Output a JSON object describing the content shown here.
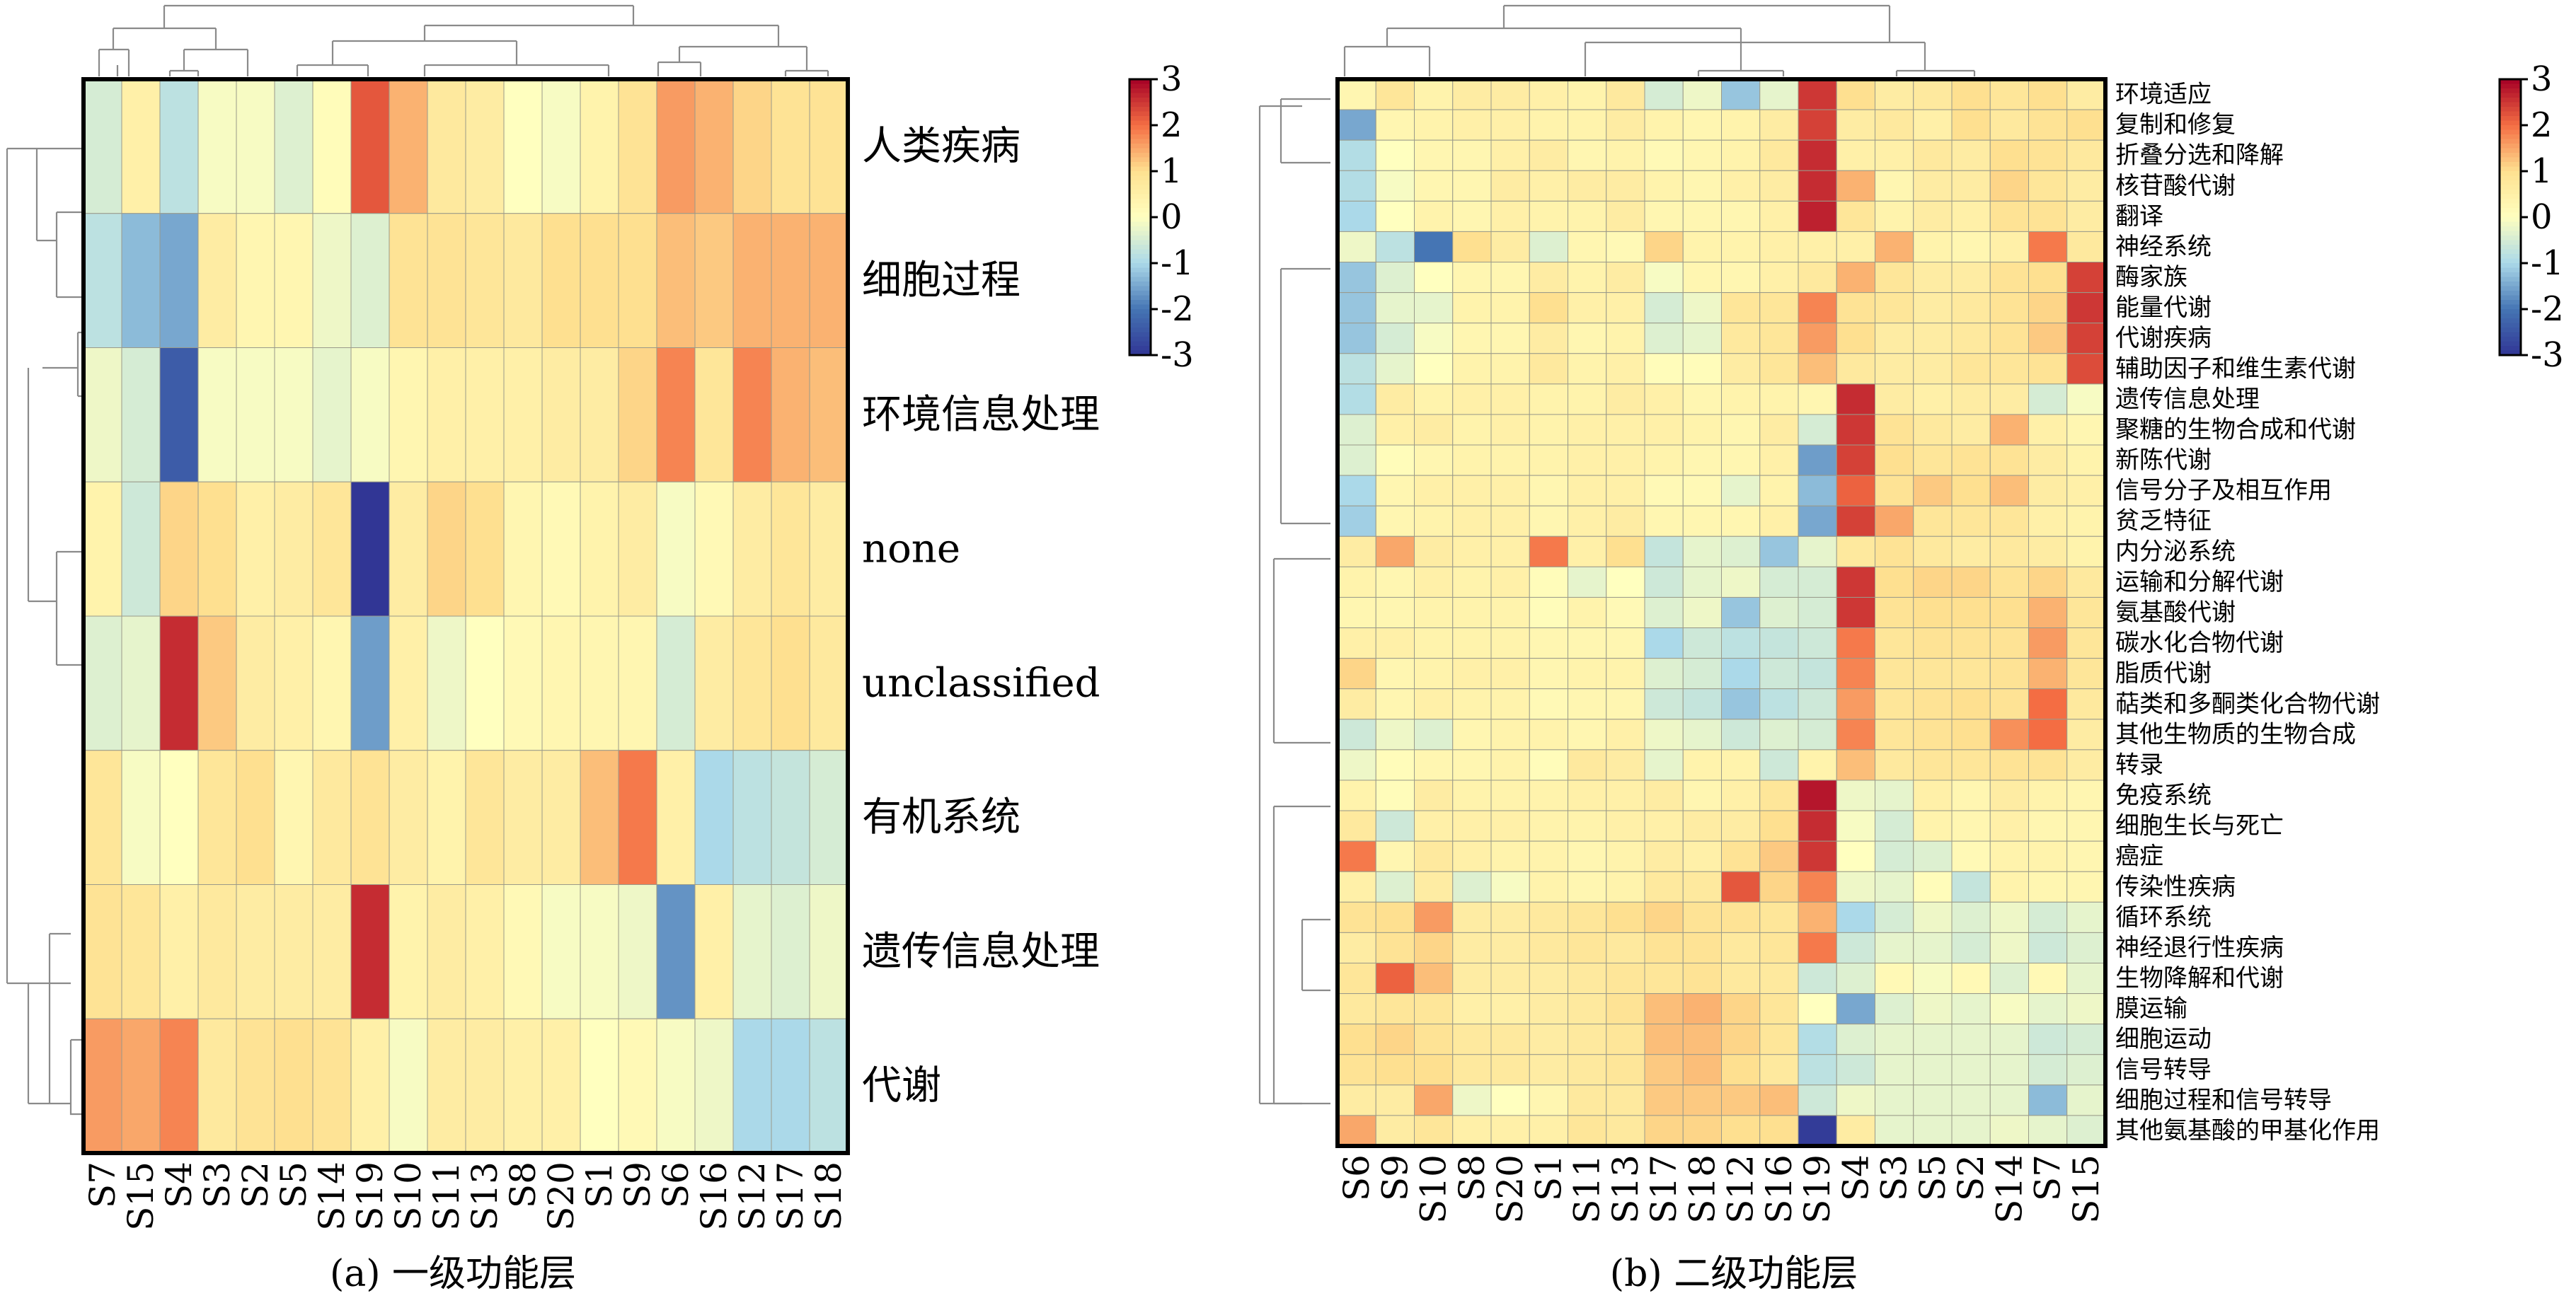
{
  "chart_data": [
    {
      "type": "heatmap",
      "caption": "(a) 一级功能层",
      "rows": [
        "人类疾病",
        "细胞过程",
        "环境信息处理",
        "none",
        "unclassified",
        "有机系统",
        "遗传信息处理",
        "代谢"
      ],
      "columns": [
        "S7",
        "S15",
        "S4",
        "S3",
        "S2",
        "S5",
        "S14",
        "S19",
        "S10",
        "S11",
        "S13",
        "S8",
        "S20",
        "S1",
        "S9",
        "S6",
        "S16",
        "S12",
        "S17",
        "S18"
      ],
      "values": [
        [
          -0.5,
          0.5,
          -0.8,
          -0.1,
          -0.1,
          -0.4,
          0.1,
          2.2,
          1.4,
          0.7,
          0.6,
          0.0,
          -0.1,
          0.4,
          0.9,
          1.6,
          1.4,
          1.1,
          0.9,
          0.9
        ],
        [
          -0.8,
          -1.3,
          -1.5,
          0.6,
          0.3,
          0.3,
          -0.2,
          -0.4,
          0.9,
          0.9,
          0.8,
          0.7,
          1.0,
          1.0,
          1.0,
          1.3,
          1.2,
          1.4,
          1.4,
          1.4
        ],
        [
          -0.2,
          -0.5,
          -2.4,
          -0.1,
          -0.1,
          -0.1,
          -0.3,
          -0.1,
          0.3,
          0.5,
          0.5,
          0.5,
          0.6,
          0.6,
          1.1,
          1.8,
          0.8,
          1.8,
          1.4,
          1.3
        ],
        [
          0.4,
          -0.6,
          1.1,
          1.0,
          0.5,
          0.6,
          0.8,
          -3.0,
          0.6,
          1.1,
          1.0,
          0.3,
          0.2,
          0.4,
          0.6,
          -0.1,
          0.2,
          0.6,
          0.8,
          0.6
        ],
        [
          -0.4,
          -0.3,
          2.6,
          1.2,
          0.6,
          0.5,
          0.3,
          -1.6,
          0.5,
          -0.2,
          0.0,
          0.2,
          0.3,
          0.3,
          0.3,
          -0.5,
          0.6,
          0.8,
          1.0,
          0.7
        ],
        [
          0.8,
          -0.1,
          0.0,
          0.8,
          1.0,
          0.3,
          0.7,
          0.9,
          0.6,
          0.4,
          0.8,
          0.6,
          0.6,
          1.3,
          1.9,
          0.5,
          -1.0,
          -0.8,
          -0.7,
          -0.5
        ],
        [
          0.9,
          0.8,
          0.5,
          0.7,
          0.6,
          0.6,
          0.6,
          2.6,
          0.4,
          0.6,
          0.5,
          0.2,
          -0.1,
          -0.1,
          -0.2,
          -1.7,
          0.5,
          -0.3,
          -0.4,
          -0.2
        ],
        [
          1.6,
          1.5,
          1.8,
          0.7,
          0.9,
          1.0,
          0.9,
          0.5,
          -0.1,
          0.6,
          0.6,
          0.5,
          0.5,
          0.0,
          0.2,
          -0.1,
          -0.2,
          -1.0,
          -1.0,
          -0.8
        ]
      ],
      "colorbar": {
        "ticks": [
          "3",
          "2",
          "1",
          "0",
          "-1",
          "-2",
          "-3"
        ],
        "range": [
          -3,
          3
        ]
      }
    },
    {
      "type": "heatmap",
      "caption": "(b) 二级功能层",
      "rows": [
        "环境适应",
        "复制和修复",
        "折叠分选和降解",
        "核苷酸代谢",
        "翻译",
        "神经系统",
        "酶家族",
        "能量代谢",
        "代谢疾病",
        "辅助因子和维生素代谢",
        "遗传信息处理",
        "聚糖的生物合成和代谢",
        "新陈代谢",
        "信号分子及相互作用",
        "贫乏特征",
        "内分泌系统",
        "运输和分解代谢",
        "氨基酸代谢",
        "碳水化合物代谢",
        "脂质代谢",
        "萜类和多酮类化合物代谢",
        "其他生物质的生物合成",
        "转录",
        "免疫系统",
        "细胞生长与死亡",
        "癌症",
        "传染性疾病",
        "循环系统",
        "神经退行性疾病",
        "生物降解和代谢",
        "膜运输",
        "细胞运动",
        "信号转导",
        "细胞过程和信号转导",
        "其他氨基酸的甲基化作用"
      ],
      "columns": [
        "S6",
        "S9",
        "S10",
        "S8",
        "S20",
        "S1",
        "S11",
        "S13",
        "S17",
        "S18",
        "S12",
        "S16",
        "S19",
        "S4",
        "S3",
        "S5",
        "S2",
        "S14",
        "S7",
        "S15"
      ],
      "values": [
        [
          0.3,
          0.8,
          0.4,
          0.6,
          0.6,
          0.5,
          0.4,
          0.7,
          -0.5,
          -0.2,
          -1.2,
          -0.3,
          2.5,
          1.0,
          0.6,
          0.7,
          1.0,
          0.8,
          1.0,
          0.6
        ],
        [
          -1.5,
          0.3,
          0.4,
          0.5,
          0.5,
          0.4,
          0.4,
          0.6,
          0.4,
          0.3,
          0.4,
          0.6,
          2.4,
          0.6,
          0.7,
          0.5,
          1.0,
          0.7,
          0.9,
          1.0
        ],
        [
          -0.9,
          0.0,
          0.3,
          0.3,
          0.5,
          0.6,
          0.3,
          0.4,
          0.2,
          0.3,
          0.4,
          0.7,
          2.6,
          0.5,
          0.5,
          0.7,
          0.6,
          1.0,
          0.9,
          0.7
        ],
        [
          -0.9,
          -0.1,
          0.3,
          0.3,
          0.6,
          0.5,
          0.6,
          0.6,
          0.4,
          0.3,
          0.5,
          0.6,
          2.6,
          1.4,
          0.3,
          0.6,
          0.6,
          1.1,
          0.8,
          0.6
        ],
        [
          -1.0,
          0.0,
          0.4,
          0.3,
          0.5,
          0.4,
          0.4,
          0.6,
          0.3,
          0.3,
          0.3,
          0.5,
          2.7,
          0.8,
          0.4,
          0.6,
          0.5,
          0.9,
          0.9,
          0.6
        ],
        [
          -0.2,
          -0.8,
          -2.0,
          1.0,
          0.6,
          -0.4,
          0.3,
          0.2,
          1.1,
          0.4,
          0.4,
          0.5,
          0.5,
          0.5,
          1.4,
          0.4,
          0.3,
          0.5,
          1.9,
          0.7
        ],
        [
          -1.2,
          -0.4,
          0.0,
          0.3,
          0.3,
          0.6,
          0.4,
          0.6,
          -0.1,
          0.3,
          0.3,
          0.5,
          0.7,
          1.4,
          0.8,
          0.6,
          0.6,
          0.9,
          1.0,
          2.4
        ],
        [
          -1.2,
          -0.3,
          -0.3,
          0.4,
          0.4,
          1.0,
          0.5,
          0.5,
          -0.5,
          -0.2,
          0.8,
          0.8,
          1.8,
          0.9,
          0.8,
          0.6,
          0.7,
          0.9,
          1.1,
          2.5
        ],
        [
          -1.2,
          -0.5,
          -0.1,
          0.3,
          0.3,
          0.6,
          0.3,
          0.4,
          -0.4,
          -0.3,
          0.7,
          0.8,
          1.6,
          1.0,
          0.6,
          0.6,
          0.7,
          0.9,
          1.2,
          2.4
        ],
        [
          -0.8,
          -0.3,
          0.0,
          0.4,
          0.4,
          0.7,
          0.4,
          0.5,
          0.1,
          0.1,
          0.6,
          0.8,
          1.3,
          0.7,
          0.6,
          0.6,
          0.8,
          0.8,
          0.9,
          2.3
        ],
        [
          -0.9,
          0.6,
          0.4,
          0.5,
          0.5,
          0.4,
          0.4,
          0.6,
          0.5,
          0.3,
          0.4,
          0.4,
          0.3,
          2.6,
          0.6,
          0.5,
          0.6,
          0.6,
          -0.5,
          -0.1
        ],
        [
          -0.4,
          0.5,
          0.6,
          0.4,
          0.5,
          0.4,
          0.5,
          0.5,
          0.5,
          0.4,
          0.3,
          0.6,
          -0.5,
          2.5,
          0.9,
          0.7,
          0.6,
          1.4,
          0.5,
          0.3
        ],
        [
          -0.4,
          0.1,
          0.3,
          0.4,
          0.4,
          0.4,
          0.5,
          0.5,
          0.4,
          0.3,
          0.3,
          0.5,
          -1.6,
          2.4,
          1.0,
          0.8,
          0.9,
          0.9,
          0.6,
          0.4
        ],
        [
          -1.0,
          0.3,
          0.5,
          0.5,
          0.5,
          0.3,
          0.5,
          0.5,
          0.2,
          0.2,
          -0.3,
          0.4,
          -1.3,
          2.1,
          0.9,
          1.2,
          1.0,
          1.3,
          0.6,
          0.5
        ],
        [
          -1.1,
          0.3,
          0.4,
          0.5,
          0.5,
          0.3,
          0.5,
          0.6,
          0.3,
          0.3,
          0.3,
          0.5,
          -1.5,
          2.4,
          1.5,
          0.8,
          0.8,
          0.8,
          0.5,
          0.4
        ],
        [
          0.6,
          1.5,
          0.6,
          0.5,
          0.5,
          1.9,
          0.5,
          1.0,
          -0.7,
          -0.3,
          -0.4,
          -1.2,
          -0.3,
          0.7,
          0.9,
          0.7,
          0.6,
          0.7,
          0.6,
          0.4
        ],
        [
          0.4,
          0.3,
          0.5,
          0.4,
          0.5,
          0.1,
          -0.3,
          0.0,
          -0.6,
          -0.3,
          -0.2,
          -0.5,
          -0.5,
          2.5,
          1.0,
          1.1,
          1.1,
          0.9,
          1.1,
          0.7
        ],
        [
          0.3,
          0.3,
          0.4,
          0.4,
          0.4,
          0.1,
          0.4,
          0.2,
          -0.4,
          -0.2,
          -1.2,
          -0.4,
          -0.5,
          2.5,
          0.9,
          1.0,
          1.0,
          1.0,
          1.4,
          0.8
        ],
        [
          0.5,
          0.5,
          0.4,
          0.4,
          0.4,
          0.3,
          0.3,
          0.3,
          -1.0,
          -0.6,
          -0.8,
          -0.7,
          -0.6,
          1.9,
          0.8,
          0.9,
          0.9,
          0.9,
          1.6,
          0.8
        ],
        [
          1.1,
          0.3,
          0.4,
          0.5,
          0.5,
          0.3,
          0.4,
          0.4,
          -0.4,
          -0.5,
          -1.0,
          -0.6,
          -0.7,
          1.8,
          0.8,
          0.8,
          0.8,
          0.9,
          1.4,
          0.8
        ],
        [
          0.6,
          0.3,
          0.5,
          0.4,
          0.4,
          0.2,
          0.3,
          0.3,
          -0.6,
          -0.7,
          -1.2,
          -0.8,
          -0.6,
          1.6,
          0.8,
          0.9,
          1.0,
          0.9,
          2.0,
          0.7
        ],
        [
          -0.6,
          -0.2,
          -0.4,
          0.3,
          0.4,
          0.4,
          0.3,
          0.5,
          -0.2,
          -0.3,
          -0.6,
          -0.4,
          -0.5,
          1.8,
          0.8,
          0.9,
          1.0,
          1.7,
          2.0,
          0.6
        ],
        [
          -0.2,
          0.1,
          0.3,
          0.3,
          0.4,
          0.1,
          0.7,
          0.6,
          -0.3,
          0.4,
          0.4,
          -0.6,
          0.4,
          1.3,
          0.7,
          0.8,
          0.8,
          0.9,
          0.9,
          0.6
        ],
        [
          0.4,
          0.1,
          0.6,
          0.4,
          0.4,
          0.4,
          0.5,
          0.5,
          0.6,
          0.3,
          0.5,
          0.8,
          2.8,
          -0.2,
          -0.3,
          0.5,
          0.3,
          0.6,
          0.4,
          0.3
        ],
        [
          0.7,
          -0.6,
          0.5,
          0.5,
          0.5,
          0.4,
          0.4,
          0.5,
          0.5,
          0.6,
          0.6,
          1.0,
          2.6,
          -0.1,
          -0.5,
          0.4,
          0.3,
          0.5,
          0.3,
          0.3
        ],
        [
          1.9,
          0.3,
          0.7,
          0.5,
          0.4,
          0.4,
          0.3,
          0.4,
          0.6,
          0.5,
          0.9,
          1.2,
          2.5,
          0.0,
          -0.5,
          -0.4,
          0.2,
          0.4,
          0.4,
          0.3
        ],
        [
          0.5,
          -0.4,
          0.6,
          -0.4,
          -0.1,
          0.4,
          0.3,
          0.4,
          0.7,
          0.7,
          2.2,
          1.1,
          1.8,
          -0.2,
          -0.3,
          0.1,
          -0.7,
          0.4,
          0.3,
          0.3
        ],
        [
          0.9,
          1.0,
          1.6,
          0.6,
          0.6,
          0.7,
          0.8,
          1.0,
          1.1,
          0.9,
          0.9,
          0.8,
          1.4,
          -1.0,
          -0.5,
          -0.2,
          -0.4,
          -0.2,
          -0.5,
          -0.3
        ],
        [
          0.6,
          0.9,
          1.1,
          0.6,
          0.6,
          0.7,
          0.8,
          0.7,
          0.9,
          0.9,
          0.7,
          0.8,
          1.9,
          -0.6,
          -0.3,
          -0.3,
          -0.5,
          -0.2,
          -0.6,
          -0.4
        ],
        [
          0.8,
          2.1,
          1.3,
          0.6,
          0.6,
          0.6,
          0.7,
          0.8,
          0.8,
          0.9,
          0.7,
          0.7,
          -0.6,
          -0.4,
          0.2,
          -0.1,
          0.2,
          -0.4,
          0.2,
          -0.3
        ],
        [
          0.7,
          0.8,
          0.8,
          0.5,
          0.5,
          0.6,
          0.7,
          0.9,
          1.3,
          1.4,
          1.1,
          0.8,
          0.0,
          -1.5,
          -0.4,
          -0.2,
          -0.3,
          -0.1,
          -0.3,
          -0.2
        ],
        [
          1.0,
          1.1,
          0.9,
          0.7,
          0.7,
          0.6,
          0.7,
          0.8,
          1.3,
          1.3,
          1.1,
          0.8,
          -0.9,
          -0.4,
          -0.3,
          -0.3,
          -0.3,
          -0.3,
          -0.6,
          -0.5
        ],
        [
          0.9,
          1.0,
          1.0,
          0.7,
          0.7,
          0.6,
          0.7,
          0.8,
          1.2,
          1.3,
          1.0,
          0.7,
          -0.8,
          -0.6,
          -0.3,
          -0.3,
          -0.3,
          -0.3,
          -0.5,
          -0.4
        ],
        [
          0.6,
          0.6,
          1.5,
          -0.2,
          0.0,
          0.3,
          0.7,
          0.7,
          1.2,
          1.2,
          1.2,
          1.3,
          -0.6,
          -0.2,
          -0.3,
          -0.3,
          -0.3,
          -0.3,
          -1.3,
          -0.3
        ],
        [
          1.5,
          0.6,
          0.8,
          0.5,
          0.5,
          0.5,
          0.8,
          0.7,
          1.1,
          1.1,
          1.0,
          1.0,
          -2.9,
          0.6,
          -0.3,
          -0.3,
          -0.3,
          -0.2,
          -0.3,
          -0.4
        ]
      ],
      "colorbar": {
        "ticks": [
          "3",
          "2",
          "1",
          "0",
          "-1",
          "-2",
          "-3"
        ],
        "range": [
          -3,
          3
        ]
      }
    }
  ]
}
